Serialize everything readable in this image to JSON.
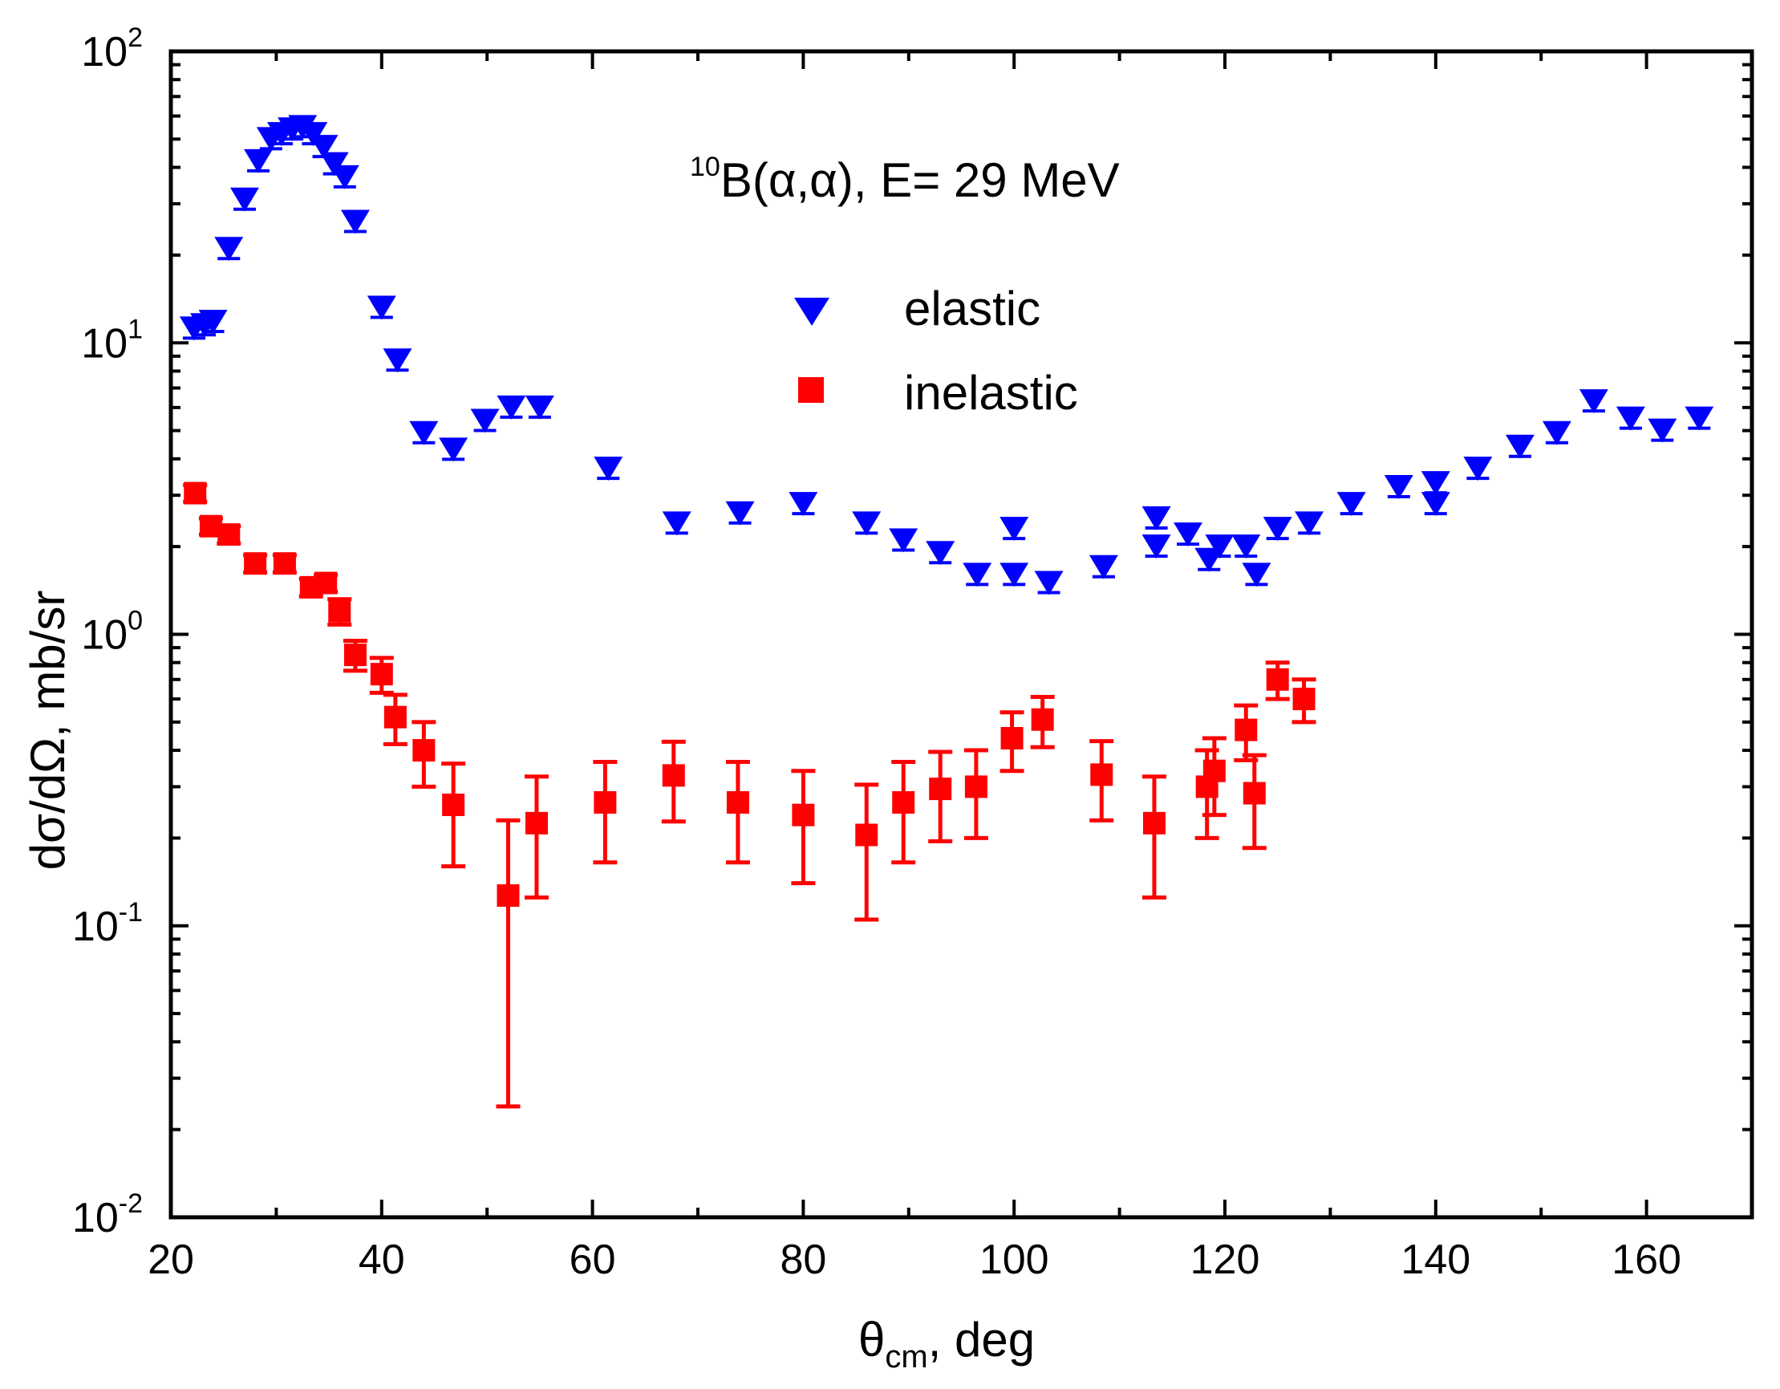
{
  "chart_data": {
    "type": "scatter",
    "yscale": "log",
    "xlim": [
      20,
      170
    ],
    "ylim": [
      0.01,
      100
    ],
    "x_ticks": [
      20,
      40,
      60,
      80,
      100,
      120,
      140,
      160
    ],
    "x_tick_labels": [
      "20",
      "40",
      "60",
      "80",
      "100",
      "120",
      "140",
      "160"
    ],
    "y_ticks": [
      {
        "value": 0.01,
        "mantissa": "10",
        "exponent": "-2"
      },
      {
        "value": 0.1,
        "mantissa": "10",
        "exponent": "-1"
      },
      {
        "value": 1,
        "mantissa": "10",
        "exponent": "0"
      },
      {
        "value": 10,
        "mantissa": "10",
        "exponent": "1"
      },
      {
        "value": 100,
        "mantissa": "10",
        "exponent": "2"
      }
    ],
    "xlabel": {
      "main": "θ",
      "sub": "cm",
      "rest": ", deg"
    },
    "ylabel": "dσ/dΩ, mb/sr",
    "annotation": {
      "superscript": "10",
      "text": "B(α,α),  E= 29 MeV"
    },
    "legend": {
      "position": "top-center"
    },
    "series": [
      {
        "name": "elastic",
        "marker": "triangle-down",
        "color": "#0000ff",
        "points": [
          [
            22.2,
            11.2
          ],
          [
            23.2,
            11.5
          ],
          [
            24.0,
            11.8
          ],
          [
            25.5,
            21
          ],
          [
            27.0,
            31
          ],
          [
            28.3,
            42
          ],
          [
            29.5,
            50
          ],
          [
            30.5,
            52
          ],
          [
            31.5,
            54
          ],
          [
            32.5,
            55
          ],
          [
            33.5,
            52
          ],
          [
            34.5,
            47
          ],
          [
            35.5,
            41
          ],
          [
            36.5,
            37
          ],
          [
            37.5,
            26
          ],
          [
            40.0,
            13.2
          ],
          [
            41.5,
            8.7
          ],
          [
            44.0,
            4.9
          ],
          [
            46.8,
            4.3
          ],
          [
            49.8,
            5.4
          ],
          [
            52.3,
            6.0
          ],
          [
            55.0,
            6.0
          ],
          [
            61.5,
            3.7
          ],
          [
            68.0,
            2.4
          ],
          [
            74.0,
            2.6
          ],
          [
            80.0,
            2.8
          ],
          [
            86.0,
            2.4
          ],
          [
            89.5,
            2.1
          ],
          [
            93.0,
            1.9
          ],
          [
            96.5,
            1.6
          ],
          [
            100.0,
            1.6
          ],
          [
            100.0,
            2.3
          ],
          [
            103.3,
            1.5
          ],
          [
            108.5,
            1.7
          ],
          [
            113.5,
            2.0
          ],
          [
            113.5,
            2.5
          ],
          [
            116.5,
            2.2
          ],
          [
            118.5,
            1.8
          ],
          [
            119.5,
            2.0
          ],
          [
            122.0,
            2.0
          ],
          [
            123.0,
            1.6
          ],
          [
            125.0,
            2.3
          ],
          [
            128.0,
            2.4
          ],
          [
            132.0,
            2.8
          ],
          [
            136.5,
            3.2
          ],
          [
            140.0,
            2.8
          ],
          [
            140.0,
            3.3
          ],
          [
            144.0,
            3.7
          ],
          [
            148.0,
            4.4
          ],
          [
            151.5,
            4.9
          ],
          [
            155.0,
            6.3
          ],
          [
            158.5,
            5.5
          ],
          [
            161.5,
            5.0
          ],
          [
            165.0,
            5.5
          ]
        ]
      },
      {
        "name": "inelastic",
        "marker": "square",
        "color": "#ff0000",
        "points": [
          [
            22.3,
            3.05,
            0.2
          ],
          [
            23.8,
            2.35,
            0.15
          ],
          [
            25.5,
            2.2,
            0.15
          ],
          [
            28.0,
            1.75,
            0.12
          ],
          [
            30.8,
            1.75,
            0.12
          ],
          [
            33.3,
            1.45,
            0.1
          ],
          [
            34.7,
            1.5,
            0.1
          ],
          [
            36.0,
            1.2,
            0.12
          ],
          [
            37.5,
            0.85,
            0.1
          ],
          [
            40.0,
            0.73,
            0.1
          ],
          [
            41.3,
            0.52,
            0.1
          ],
          [
            44.0,
            0.4,
            0.1
          ],
          [
            46.8,
            0.26,
            0.1
          ],
          [
            52.0,
            0.127,
            0.103
          ],
          [
            54.7,
            0.225,
            0.1
          ],
          [
            61.2,
            0.265,
            0.1
          ],
          [
            67.7,
            0.328,
            0.1
          ],
          [
            73.8,
            0.265,
            0.1
          ],
          [
            80.0,
            0.24,
            0.1
          ],
          [
            86.0,
            0.205,
            0.1
          ],
          [
            89.5,
            0.265,
            0.1
          ],
          [
            93.0,
            0.295,
            0.1
          ],
          [
            96.4,
            0.3,
            0.1
          ],
          [
            99.8,
            0.44,
            0.1
          ],
          [
            102.7,
            0.51,
            0.1
          ],
          [
            108.3,
            0.33,
            0.1
          ],
          [
            113.3,
            0.225,
            0.1
          ],
          [
            118.3,
            0.3,
            0.1
          ],
          [
            119.0,
            0.34,
            0.1
          ],
          [
            122.0,
            0.47,
            0.1
          ],
          [
            122.8,
            0.285,
            0.1
          ],
          [
            125.0,
            0.7,
            0.1
          ],
          [
            127.5,
            0.6,
            0.1
          ]
        ]
      }
    ]
  }
}
